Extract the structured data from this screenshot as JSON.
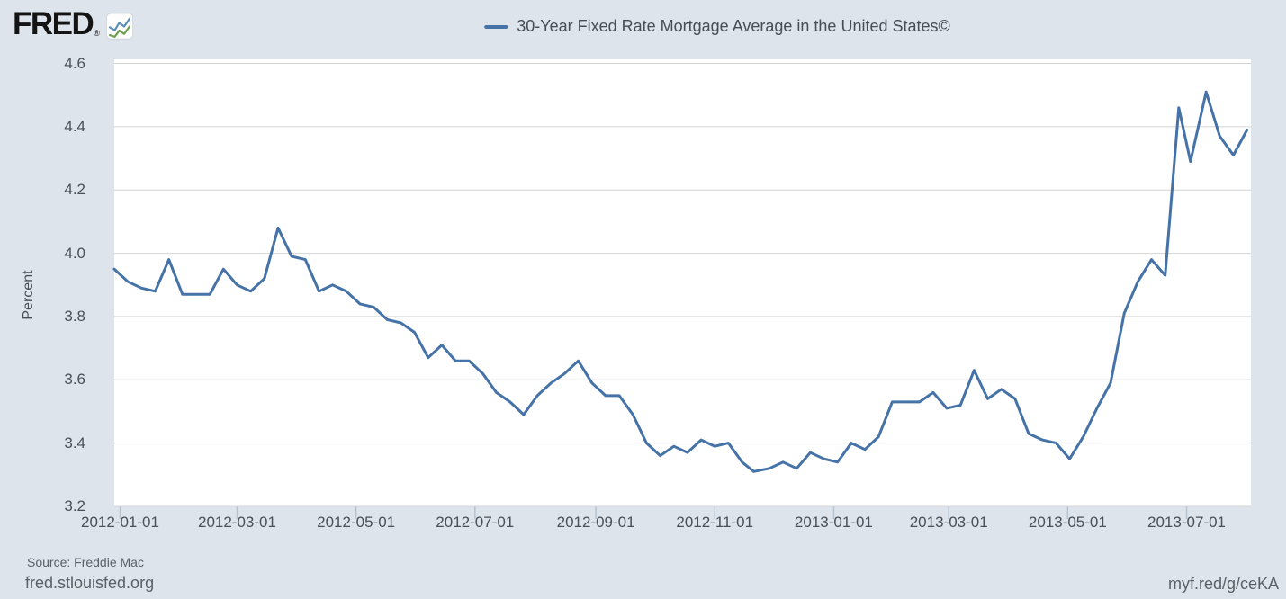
{
  "header": {
    "logo_text": "FRED",
    "logo_registered": "®",
    "legend": {
      "label": "30-Year Fixed Rate Mortgage Average in the United States©"
    }
  },
  "footer": {
    "source": "Source: Freddie Mac",
    "site_link": "fred.stlouisfed.org",
    "short_link": "myf.red/g/ceKA"
  },
  "chart_data": {
    "type": "line",
    "title": "30-Year Fixed Rate Mortgage Average in the United States©",
    "xlabel": "",
    "ylabel": "Percent",
    "ylim": [
      3.2,
      4.6
    ],
    "y_tick_labels": [
      "4.6",
      "4.4",
      "4.2",
      "4.0",
      "3.8",
      "3.6",
      "3.4",
      "3.2"
    ],
    "x_tick_labels": [
      "2012-01-01",
      "2012-03-01",
      "2012-05-01",
      "2012-07-01",
      "2012-09-01",
      "2012-11-01",
      "2013-01-01",
      "2013-03-01",
      "2013-05-01",
      "2013-07-01"
    ],
    "x_range": [
      "2011-12-29",
      "2013-08-03"
    ],
    "grid": true,
    "legend_position": "top-center",
    "colors": {
      "line": "#4572a7",
      "plot_background": "#ffffff",
      "page_background": "#dee4ec",
      "grid": "#d4d4d4",
      "tick": "#b5c3d1",
      "logo_blue": "#5b8db8",
      "logo_green": "#6f9e4f"
    },
    "series": [
      {
        "name": "30-Year Fixed Rate Mortgage Average in the United States©",
        "points": [
          [
            "2011-12-29",
            3.95
          ],
          [
            "2012-01-05",
            3.91
          ],
          [
            "2012-01-12",
            3.89
          ],
          [
            "2012-01-19",
            3.88
          ],
          [
            "2012-01-26",
            3.98
          ],
          [
            "2012-02-02",
            3.87
          ],
          [
            "2012-02-09",
            3.87
          ],
          [
            "2012-02-16",
            3.87
          ],
          [
            "2012-02-23",
            3.95
          ],
          [
            "2012-03-01",
            3.9
          ],
          [
            "2012-03-08",
            3.88
          ],
          [
            "2012-03-15",
            3.92
          ],
          [
            "2012-03-22",
            4.08
          ],
          [
            "2012-03-29",
            3.99
          ],
          [
            "2012-04-05",
            3.98
          ],
          [
            "2012-04-12",
            3.88
          ],
          [
            "2012-04-19",
            3.9
          ],
          [
            "2012-04-26",
            3.88
          ],
          [
            "2012-05-03",
            3.84
          ],
          [
            "2012-05-10",
            3.83
          ],
          [
            "2012-05-17",
            3.79
          ],
          [
            "2012-05-24",
            3.78
          ],
          [
            "2012-05-31",
            3.75
          ],
          [
            "2012-06-07",
            3.67
          ],
          [
            "2012-06-14",
            3.71
          ],
          [
            "2012-06-21",
            3.66
          ],
          [
            "2012-06-28",
            3.66
          ],
          [
            "2012-07-05",
            3.62
          ],
          [
            "2012-07-12",
            3.56
          ],
          [
            "2012-07-19",
            3.53
          ],
          [
            "2012-07-26",
            3.49
          ],
          [
            "2012-08-02",
            3.55
          ],
          [
            "2012-08-09",
            3.59
          ],
          [
            "2012-08-16",
            3.62
          ],
          [
            "2012-08-23",
            3.66
          ],
          [
            "2012-08-30",
            3.59
          ],
          [
            "2012-09-06",
            3.55
          ],
          [
            "2012-09-13",
            3.55
          ],
          [
            "2012-09-20",
            3.49
          ],
          [
            "2012-09-27",
            3.4
          ],
          [
            "2012-10-04",
            3.36
          ],
          [
            "2012-10-11",
            3.39
          ],
          [
            "2012-10-18",
            3.37
          ],
          [
            "2012-10-25",
            3.41
          ],
          [
            "2012-11-01",
            3.39
          ],
          [
            "2012-11-08",
            3.4
          ],
          [
            "2012-11-15",
            3.34
          ],
          [
            "2012-11-21",
            3.31
          ],
          [
            "2012-11-29",
            3.32
          ],
          [
            "2012-12-06",
            3.34
          ],
          [
            "2012-12-13",
            3.32
          ],
          [
            "2012-12-20",
            3.37
          ],
          [
            "2012-12-27",
            3.35
          ],
          [
            "2013-01-03",
            3.34
          ],
          [
            "2013-01-10",
            3.4
          ],
          [
            "2013-01-17",
            3.38
          ],
          [
            "2013-01-24",
            3.42
          ],
          [
            "2013-01-31",
            3.53
          ],
          [
            "2013-02-07",
            3.53
          ],
          [
            "2013-02-14",
            3.53
          ],
          [
            "2013-02-21",
            3.56
          ],
          [
            "2013-02-28",
            3.51
          ],
          [
            "2013-03-07",
            3.52
          ],
          [
            "2013-03-14",
            3.63
          ],
          [
            "2013-03-21",
            3.54
          ],
          [
            "2013-03-28",
            3.57
          ],
          [
            "2013-04-04",
            3.54
          ],
          [
            "2013-04-11",
            3.43
          ],
          [
            "2013-04-18",
            3.41
          ],
          [
            "2013-04-25",
            3.4
          ],
          [
            "2013-05-02",
            3.35
          ],
          [
            "2013-05-09",
            3.42
          ],
          [
            "2013-05-16",
            3.51
          ],
          [
            "2013-05-23",
            3.59
          ],
          [
            "2013-05-30",
            3.81
          ],
          [
            "2013-06-06",
            3.91
          ],
          [
            "2013-06-13",
            3.98
          ],
          [
            "2013-06-20",
            3.93
          ],
          [
            "2013-06-27",
            4.46
          ],
          [
            "2013-07-03",
            4.29
          ],
          [
            "2013-07-11",
            4.51
          ],
          [
            "2013-07-18",
            4.37
          ],
          [
            "2013-07-25",
            4.31
          ],
          [
            "2013-08-01",
            4.39
          ]
        ]
      }
    ]
  }
}
